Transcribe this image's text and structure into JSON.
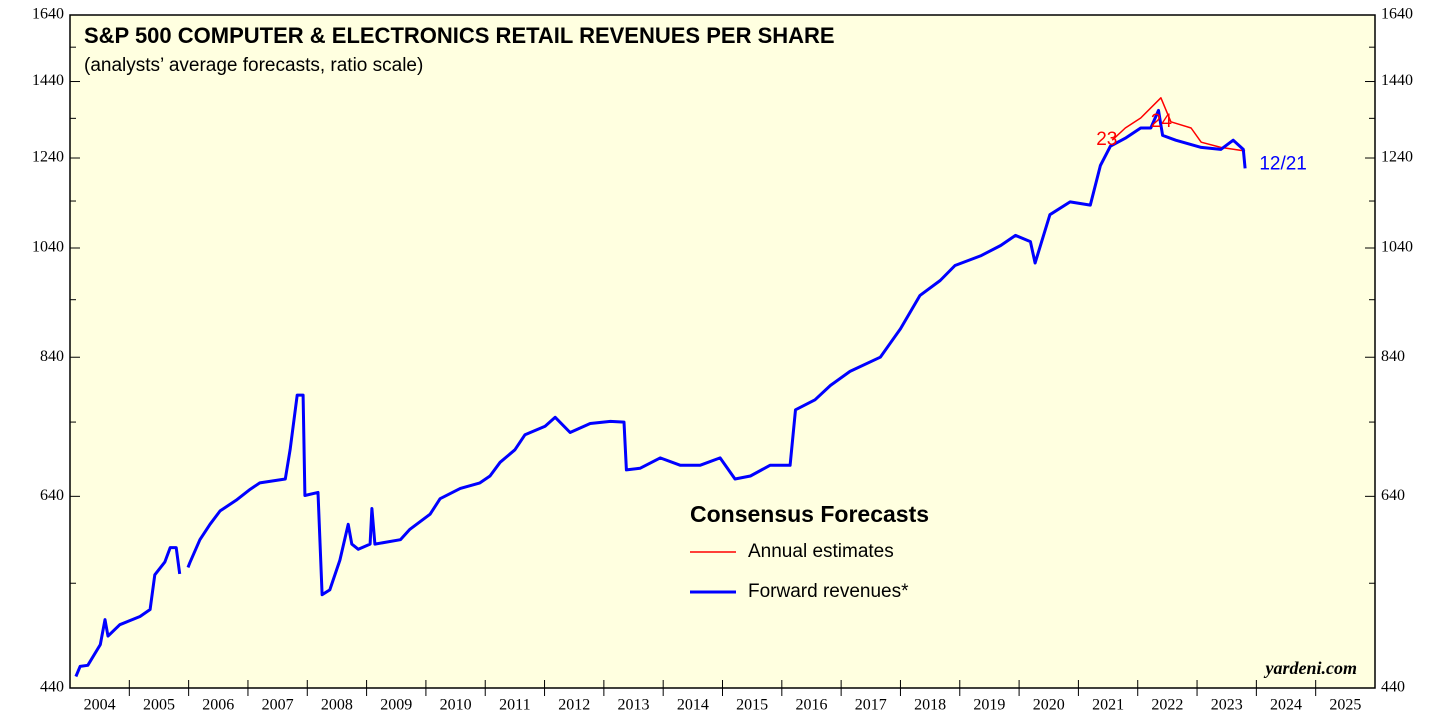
{
  "chart_data": {
    "type": "line",
    "title": "S&P 500 COMPUTER & ELECTRONICS RETAIL REVENUES PER SHARE",
    "subtitle": "(analysts’ average forecasts, ratio scale)",
    "legend_title": "Consensus Forecasts",
    "source": "yardeni.com",
    "log_scale": true,
    "xlim": [
      2004,
      2026
    ],
    "categories": [
      "2004",
      "2005",
      "2006",
      "2007",
      "2008",
      "2009",
      "2010",
      "2011",
      "2012",
      "2013",
      "2014",
      "2015",
      "2016",
      "2017",
      "2018",
      "2019",
      "2020",
      "2021",
      "2022",
      "2023",
      "2024",
      "2025"
    ],
    "ylim": [
      440,
      1640
    ],
    "yticks": [
      440,
      640,
      840,
      1040,
      1240,
      1440,
      1640
    ],
    "yticks_minor": [
      540,
      740,
      940,
      1140,
      1340,
      1540
    ],
    "series": [
      {
        "name": "Annual estimates",
        "color": "#ff0000",
        "width": 1.5,
        "x": [
          2021.57,
          2021.79,
          2022.05,
          2022.39,
          2022.56,
          2022.9,
          2023.07,
          2023.4,
          2023.81
        ],
        "values": [
          1284,
          1315,
          1341,
          1395,
          1331,
          1315,
          1279,
          1266,
          1257
        ]
      },
      {
        "name": "Forward revenues*",
        "color": "#0000ff",
        "width": 3,
        "x": [
          2004.1,
          2004.17,
          2004.3,
          2004.51,
          2004.59,
          2004.64,
          2004.84,
          2005.18,
          2005.35,
          2005.43,
          2005.6,
          2005.69,
          2005.79,
          2005.85,
          2005.92,
          2005.99,
          2006.02,
          2006.19,
          2006.36,
          2006.53,
          2006.8,
          2007.04,
          2007.2,
          2007.63,
          2007.71,
          2007.83,
          2007.93,
          2007.96,
          2008.18,
          2008.25,
          2008.38,
          2008.55,
          2008.69,
          2008.75,
          2008.86,
          2009.06,
          2009.09,
          2009.14,
          2009.57,
          2009.73,
          2010.07,
          2010.24,
          2010.58,
          2010.91,
          2011.08,
          2011.25,
          2011.5,
          2011.67,
          2012.01,
          2012.18,
          2012.43,
          2012.77,
          2013.11,
          2013.34,
          2013.38,
          2013.61,
          2013.95,
          2014.29,
          2014.62,
          2014.96,
          2015.21,
          2015.47,
          2015.8,
          2016.14,
          2016.23,
          2016.56,
          2016.82,
          2017.15,
          2017.66,
          2018.0,
          2018.33,
          2018.67,
          2018.92,
          2019.35,
          2019.69,
          2019.94,
          2020.19,
          2020.27,
          2020.52,
          2020.86,
          2021.2,
          2021.37,
          2021.54,
          2021.79,
          2022.05,
          2022.22,
          2022.35,
          2022.42,
          2022.64,
          2023.07,
          2023.4,
          2023.61,
          2023.78,
          2023.81
        ],
        "values": [
          450,
          459,
          460,
          479,
          503,
          487,
          498,
          506,
          513,
          549,
          563,
          579,
          579,
          550,
          null,
          557,
          562,
          588,
          606,
          622,
          635,
          649,
          657,
          662,
          701,
          780,
          780,
          641,
          645,
          528,
          533,
          565,
          606,
          583,
          577,
          583,
          625,
          583,
          588,
          600,
          618,
          637,
          650,
          657,
          666,
          684,
          701,
          722,
          734,
          747,
          725,
          738,
          741,
          740,
          674,
          676,
          690,
          680,
          680,
          690,
          662,
          666,
          680,
          680,
          758,
          773,
          795,
          817,
          840,
          888,
          948,
          976,
          1005,
          1024,
          1045,
          1066,
          1053,
          1010,
          1110,
          1138,
          1131,
          1222,
          1269,
          1289,
          1315,
          1315,
          1361,
          1296,
          1284,
          1266,
          1261,
          1284,
          1261,
          1215
        ]
      }
    ],
    "annotations": [
      {
        "text": "23",
        "x": 2021.3,
        "y": 1284,
        "color": "#ff0000"
      },
      {
        "text": "24",
        "x": 2022.22,
        "y": 1330,
        "color": "#ff0000"
      },
      {
        "text": "12/21",
        "x": 2024.05,
        "y": 1225,
        "color": "#0000ff"
      }
    ]
  }
}
